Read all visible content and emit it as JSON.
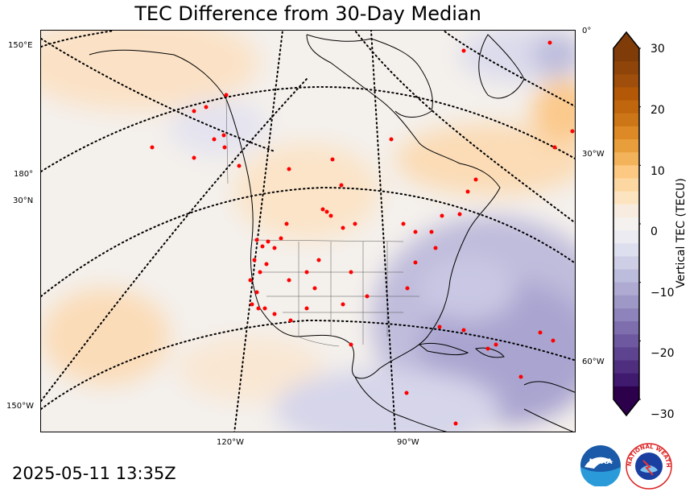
{
  "title": "TEC Difference from 30-Day Median",
  "timestamp": "2025-05-11 13:35Z",
  "colorbar": {
    "label": "Vertical TEC (TECU)",
    "ticks": [
      "30",
      "20",
      "10",
      "0",
      "−10",
      "−20",
      "−30"
    ],
    "min": -30,
    "max": 30,
    "colors_top_to_bottom": [
      "#7f3b08",
      "#8f4509",
      "#9f4f0b",
      "#b35806",
      "#c0670e",
      "#cd7617",
      "#dd8a26",
      "#e89e3a",
      "#f3b35b",
      "#fdc982",
      "#fdd7a1",
      "#fde4c0",
      "#f7ecdf",
      "#f4f1ee",
      "#ecebf2",
      "#dddfee",
      "#cecfe6",
      "#bcbcdc",
      "#aeaad2",
      "#9e98c7",
      "#8e84bb",
      "#7e6eae",
      "#6e58a0",
      "#5e4390",
      "#4f2e80",
      "#3f1a6f",
      "#2d004b"
    ]
  },
  "map": {
    "lat_labels_left": [
      "150°E",
      "180°",
      "30°N",
      "150°W"
    ],
    "lat_labels_right": [
      "0°",
      "30°W",
      "60°W"
    ],
    "lon_labels_bottom": [
      "120°W",
      "90°W"
    ],
    "region": "North America",
    "anomaly_pattern": "positive (orange) over northwestern Atlantic and Pacific, negative (purple) over southeastern US, Gulf of Mexico and Caribbean",
    "station_color": "#ff0000"
  },
  "logos": {
    "noaa_text": "NOAA",
    "nws_text": "NATIONAL WEATHER SERVICE"
  }
}
